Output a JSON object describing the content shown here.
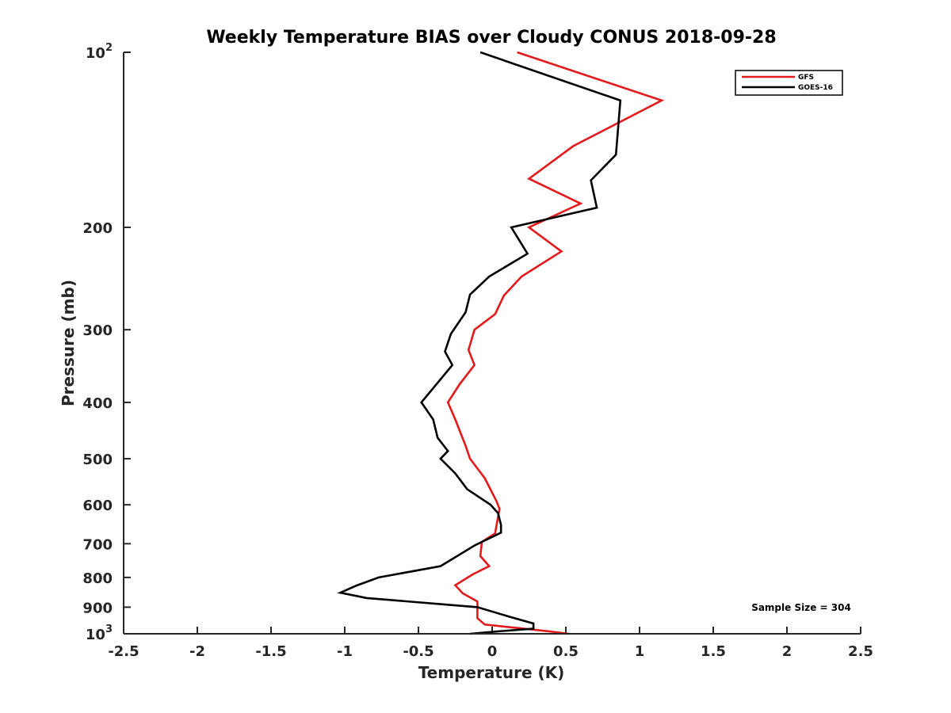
{
  "chart_data": {
    "type": "line",
    "title": "Weekly Temperature BIAS over Cloudy CONUS 2018-09-28",
    "xlabel": "Temperature (K)",
    "ylabel": "Pressure (mb)",
    "xlim": [
      -2.5,
      2.5
    ],
    "ylim": [
      100,
      1000
    ],
    "y_scale": "log",
    "y_reversed": true,
    "grid": false,
    "legend_position": "top-right",
    "x_ticks": [
      -2.5,
      -2,
      -1.5,
      -1,
      -0.5,
      0,
      0.5,
      1,
      1.5,
      2,
      2.5
    ],
    "x_tick_labels": [
      "-2.5",
      "-2",
      "-1.5",
      "-1",
      "-0.5",
      "0",
      "0.5",
      "1",
      "1.5",
      "2",
      "2.5"
    ],
    "y_ticks": [
      {
        "value": 100,
        "base": "10",
        "exp": "2"
      },
      {
        "value": 200,
        "label": "200"
      },
      {
        "value": 300,
        "label": "300"
      },
      {
        "value": 400,
        "label": "400"
      },
      {
        "value": 500,
        "label": "500"
      },
      {
        "value": 600,
        "label": "600"
      },
      {
        "value": 700,
        "label": "700"
      },
      {
        "value": 800,
        "label": "800"
      },
      {
        "value": 900,
        "label": "900"
      },
      {
        "value": 1000,
        "base": "10",
        "exp": "3"
      }
    ],
    "annotation": "Sample Size = 304",
    "series": [
      {
        "name": "GFS",
        "color": "#e31a1c",
        "points": [
          [
            0.17,
            100
          ],
          [
            1.15,
            121
          ],
          [
            0.55,
            145
          ],
          [
            0.25,
            165
          ],
          [
            0.6,
            182
          ],
          [
            0.25,
            200
          ],
          [
            0.47,
            220
          ],
          [
            0.2,
            243
          ],
          [
            0.08,
            262
          ],
          [
            0.02,
            282
          ],
          [
            -0.12,
            300
          ],
          [
            -0.16,
            325
          ],
          [
            -0.12,
            345
          ],
          [
            -0.22,
            372
          ],
          [
            -0.3,
            400
          ],
          [
            -0.25,
            428
          ],
          [
            -0.18,
            475
          ],
          [
            -0.15,
            500
          ],
          [
            -0.05,
            540
          ],
          [
            0.03,
            592
          ],
          [
            0.05,
            610
          ],
          [
            0.02,
            672
          ],
          [
            -0.07,
            695
          ],
          [
            -0.08,
            735
          ],
          [
            -0.02,
            765
          ],
          [
            -0.13,
            790
          ],
          [
            -0.25,
            825
          ],
          [
            -0.2,
            852
          ],
          [
            -0.1,
            880
          ],
          [
            -0.1,
            940
          ],
          [
            -0.05,
            964
          ],
          [
            0.38,
            990
          ],
          [
            0.52,
            1000
          ]
        ]
      },
      {
        "name": "GOES-16",
        "color": "#000000",
        "points": [
          [
            -0.08,
            100
          ],
          [
            0.87,
            121
          ],
          [
            0.84,
            150
          ],
          [
            0.67,
            166
          ],
          [
            0.71,
            185
          ],
          [
            0.13,
            200
          ],
          [
            0.24,
            222
          ],
          [
            -0.02,
            243
          ],
          [
            -0.15,
            261
          ],
          [
            -0.18,
            280
          ],
          [
            -0.28,
            305
          ],
          [
            -0.32,
            327
          ],
          [
            -0.27,
            345
          ],
          [
            -0.48,
            400
          ],
          [
            -0.4,
            428
          ],
          [
            -0.37,
            460
          ],
          [
            -0.3,
            485
          ],
          [
            -0.35,
            500
          ],
          [
            -0.25,
            530
          ],
          [
            -0.17,
            564
          ],
          [
            -0.01,
            600
          ],
          [
            0.04,
            620
          ],
          [
            0.06,
            650
          ],
          [
            0.06,
            670
          ],
          [
            -0.12,
            705
          ],
          [
            -0.35,
            765
          ],
          [
            -0.77,
            800
          ],
          [
            -0.92,
            826
          ],
          [
            -1.03,
            850
          ],
          [
            -0.85,
            868
          ],
          [
            -0.1,
            900
          ],
          [
            0.12,
            935
          ],
          [
            0.28,
            960
          ],
          [
            0.28,
            980
          ],
          [
            0.05,
            990
          ],
          [
            -0.15,
            1000
          ]
        ]
      }
    ]
  }
}
